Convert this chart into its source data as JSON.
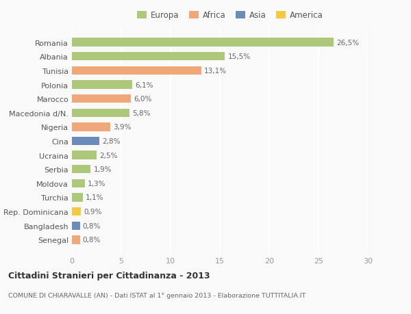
{
  "categories": [
    "Romania",
    "Albania",
    "Tunisia",
    "Polonia",
    "Marocco",
    "Macedonia d/N.",
    "Nigeria",
    "Cina",
    "Ucraina",
    "Serbia",
    "Moldova",
    "Turchia",
    "Rep. Dominicana",
    "Bangladesh",
    "Senegal"
  ],
  "values": [
    26.5,
    15.5,
    13.1,
    6.1,
    6.0,
    5.8,
    3.9,
    2.8,
    2.5,
    1.9,
    1.3,
    1.1,
    0.9,
    0.8,
    0.8
  ],
  "labels": [
    "26,5%",
    "15,5%",
    "13,1%",
    "6,1%",
    "6,0%",
    "5,8%",
    "3,9%",
    "2,8%",
    "2,5%",
    "1,9%",
    "1,3%",
    "1,1%",
    "0,9%",
    "0,8%",
    "0,8%"
  ],
  "colors": [
    "#adc87a",
    "#adc87a",
    "#f0a87a",
    "#adc87a",
    "#f0a87a",
    "#adc87a",
    "#f0a87a",
    "#6b8cba",
    "#adc87a",
    "#adc87a",
    "#adc87a",
    "#adc87a",
    "#f5c842",
    "#6b8cba",
    "#f0a87a"
  ],
  "legend_labels": [
    "Europa",
    "Africa",
    "Asia",
    "America"
  ],
  "legend_colors": [
    "#adc87a",
    "#f0a87a",
    "#6b8cba",
    "#f5c842"
  ],
  "title": "Cittadini Stranieri per Cittadinanza - 2013",
  "subtitle": "COMUNE DI CHIARAVALLE (AN) - Dati ISTAT al 1° gennaio 2013 - Elaborazione TUTTITALIA.IT",
  "xlim": [
    0,
    30
  ],
  "xticks": [
    0,
    5,
    10,
    15,
    20,
    25,
    30
  ],
  "background_color": "#f9f9f9",
  "grid_color": "#ffffff",
  "bar_height": 0.6
}
